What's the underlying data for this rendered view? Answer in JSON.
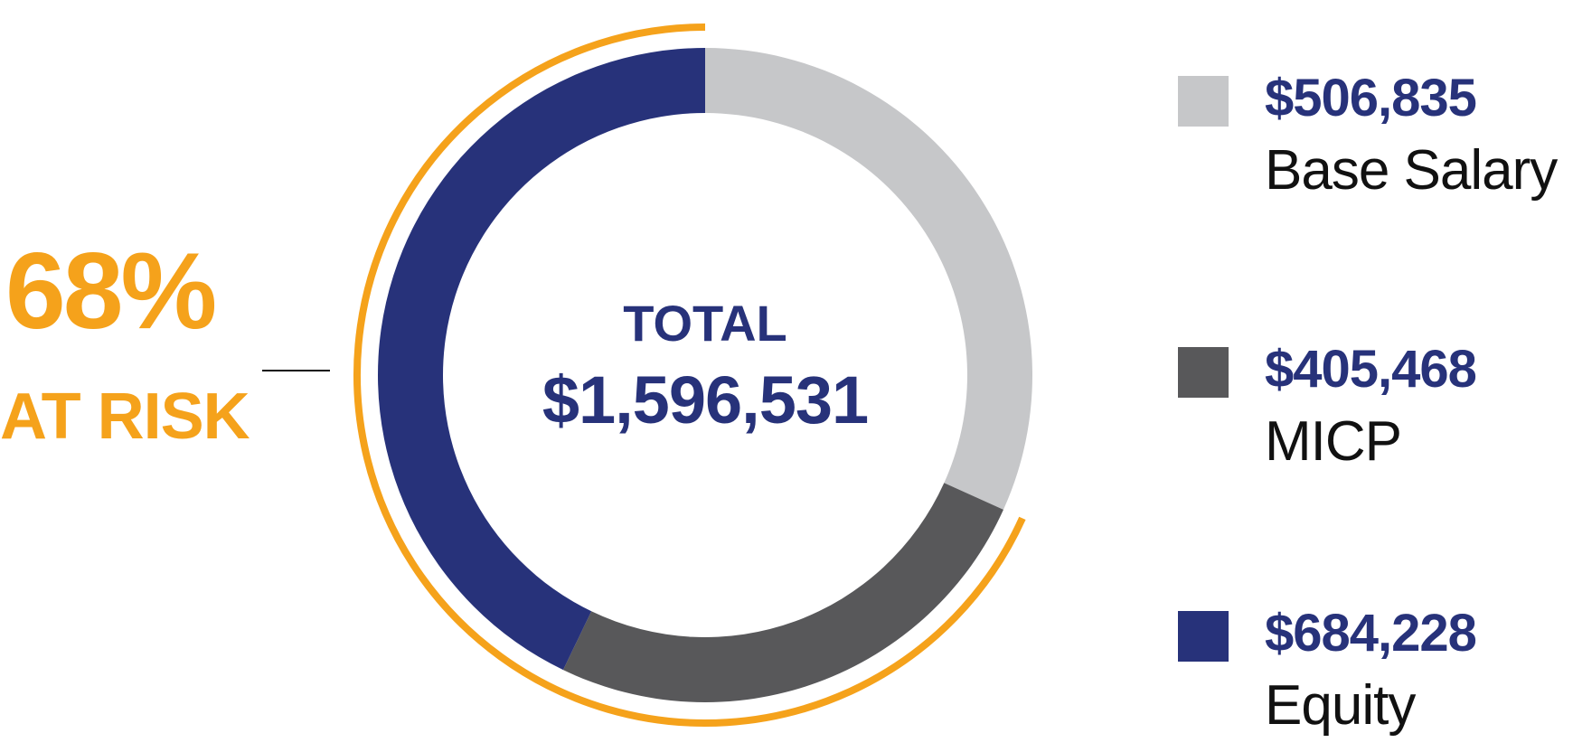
{
  "chart_data": {
    "type": "pie",
    "categories": [
      "Base Salary",
      "MICP",
      "Equity"
    ],
    "values": [
      506835,
      405468,
      684228
    ],
    "value_labels": [
      "$506,835",
      "$405,468",
      "$684,228"
    ],
    "colors": [
      "#c6c7c9",
      "#58585a",
      "#27327a"
    ],
    "center_title": "TOTAL",
    "center_value": "$1,596,531",
    "total": 1596531,
    "at_risk_percent": 68,
    "at_risk_value_label": "68%",
    "at_risk_label": "AT RISK",
    "at_risk_color": "#f5a21b",
    "legend_position": "right"
  },
  "colors": {
    "navy": "#27327a",
    "orange": "#f5a21b",
    "text": "#111111"
  }
}
